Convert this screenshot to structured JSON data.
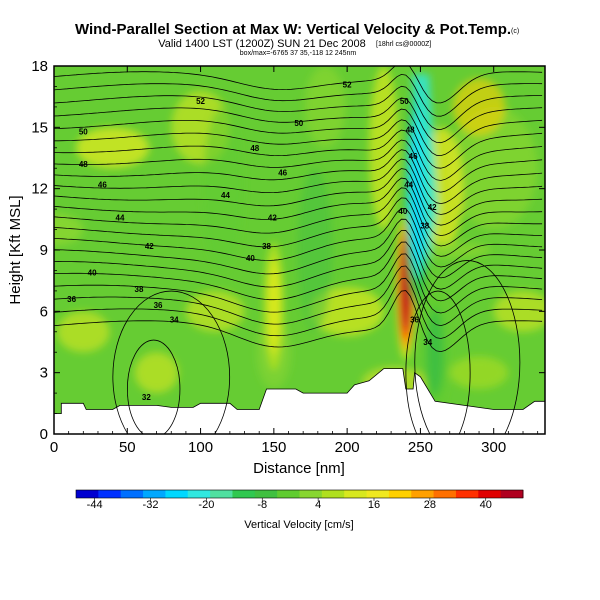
{
  "chart_data": {
    "type": "heatmap",
    "title": "Wind-Parallel Section at Max W: Vertical Velocity & Pot.Temp.",
    "title_mark": "(c)",
    "subtitle": "Valid 1400 LST (1200Z) SUN 21 Dec 2008",
    "subtitle_note": "[18hrl cs@0000Z]",
    "subtitle_location": "box/max=-6765 37 35,-118 12 245nm",
    "xlabel": "Distance [nm]",
    "ylabel": "Height [Kft MSL]",
    "xlim": [
      0,
      335
    ],
    "ylim": [
      0,
      18
    ],
    "xticks": [
      0,
      50,
      100,
      150,
      200,
      250,
      300
    ],
    "yticks": [
      0,
      3,
      6,
      9,
      12,
      15,
      18
    ],
    "colorbar": {
      "label": "Vertical Velocity [cm/s]",
      "ticks": [
        -44,
        -32,
        -20,
        -8,
        4,
        16,
        28,
        40
      ],
      "min": -48,
      "max": 48,
      "colors": [
        "#0000d0",
        "#0030ff",
        "#0070ff",
        "#00a8ff",
        "#00d8ff",
        "#30e8e0",
        "#50e0a0",
        "#30c850",
        "#40c040",
        "#60cc30",
        "#88d630",
        "#b0e020",
        "#d8e820",
        "#f0e820",
        "#ffd000",
        "#ffa000",
        "#ff7000",
        "#ff3000",
        "#e00000",
        "#b00020"
      ]
    },
    "vertical_velocity_features": [
      {
        "kind": "updraft",
        "x": 150,
        "y_range": [
          3,
          9.5
        ],
        "peak": 14
      },
      {
        "kind": "updraft",
        "x": 240,
        "y_range": [
          3.5,
          11
        ],
        "peak": 44
      },
      {
        "kind": "downdraft",
        "x": 248,
        "y_range": [
          6,
          17.5
        ],
        "peak": -26
      },
      {
        "kind": "downdraft",
        "x": 260,
        "y_range": [
          1,
          7
        ],
        "peak": -8
      }
    ],
    "theta_contour_labels": [
      {
        "value": "52",
        "x": 100,
        "y": 16.3
      },
      {
        "value": "52",
        "x": 200,
        "y": 17.1
      },
      {
        "value": "50",
        "x": 20,
        "y": 14.8
      },
      {
        "value": "50",
        "x": 167,
        "y": 15.2
      },
      {
        "value": "50",
        "x": 239,
        "y": 16.3
      },
      {
        "value": "48",
        "x": 20,
        "y": 13.2
      },
      {
        "value": "48",
        "x": 137,
        "y": 14.0
      },
      {
        "value": "48",
        "x": 243,
        "y": 14.9
      },
      {
        "value": "46",
        "x": 33,
        "y": 12.2
      },
      {
        "value": "46",
        "x": 156,
        "y": 12.8
      },
      {
        "value": "46",
        "x": 245,
        "y": 13.6
      },
      {
        "value": "44",
        "x": 45,
        "y": 10.6
      },
      {
        "value": "44",
        "x": 117,
        "y": 11.7
      },
      {
        "value": "44",
        "x": 242,
        "y": 12.2
      },
      {
        "value": "42",
        "x": 65,
        "y": 9.2
      },
      {
        "value": "42",
        "x": 149,
        "y": 10.6
      },
      {
        "value": "42",
        "x": 258,
        "y": 11.1
      },
      {
        "value": "40",
        "x": 26,
        "y": 7.9
      },
      {
        "value": "40",
        "x": 134,
        "y": 8.6
      },
      {
        "value": "40",
        "x": 238,
        "y": 10.9
      },
      {
        "value": "38",
        "x": 58,
        "y": 7.1
      },
      {
        "value": "38",
        "x": 145,
        "y": 9.2
      },
      {
        "value": "38",
        "x": 253,
        "y": 10.2
      },
      {
        "value": "36",
        "x": 12,
        "y": 6.6
      },
      {
        "value": "36",
        "x": 71,
        "y": 6.3
      },
      {
        "value": "36",
        "x": 246,
        "y": 5.6
      },
      {
        "value": "34",
        "x": 82,
        "y": 5.6
      },
      {
        "value": "34",
        "x": 255,
        "y": 4.5
      },
      {
        "value": "32",
        "x": 63,
        "y": 1.8
      }
    ]
  }
}
